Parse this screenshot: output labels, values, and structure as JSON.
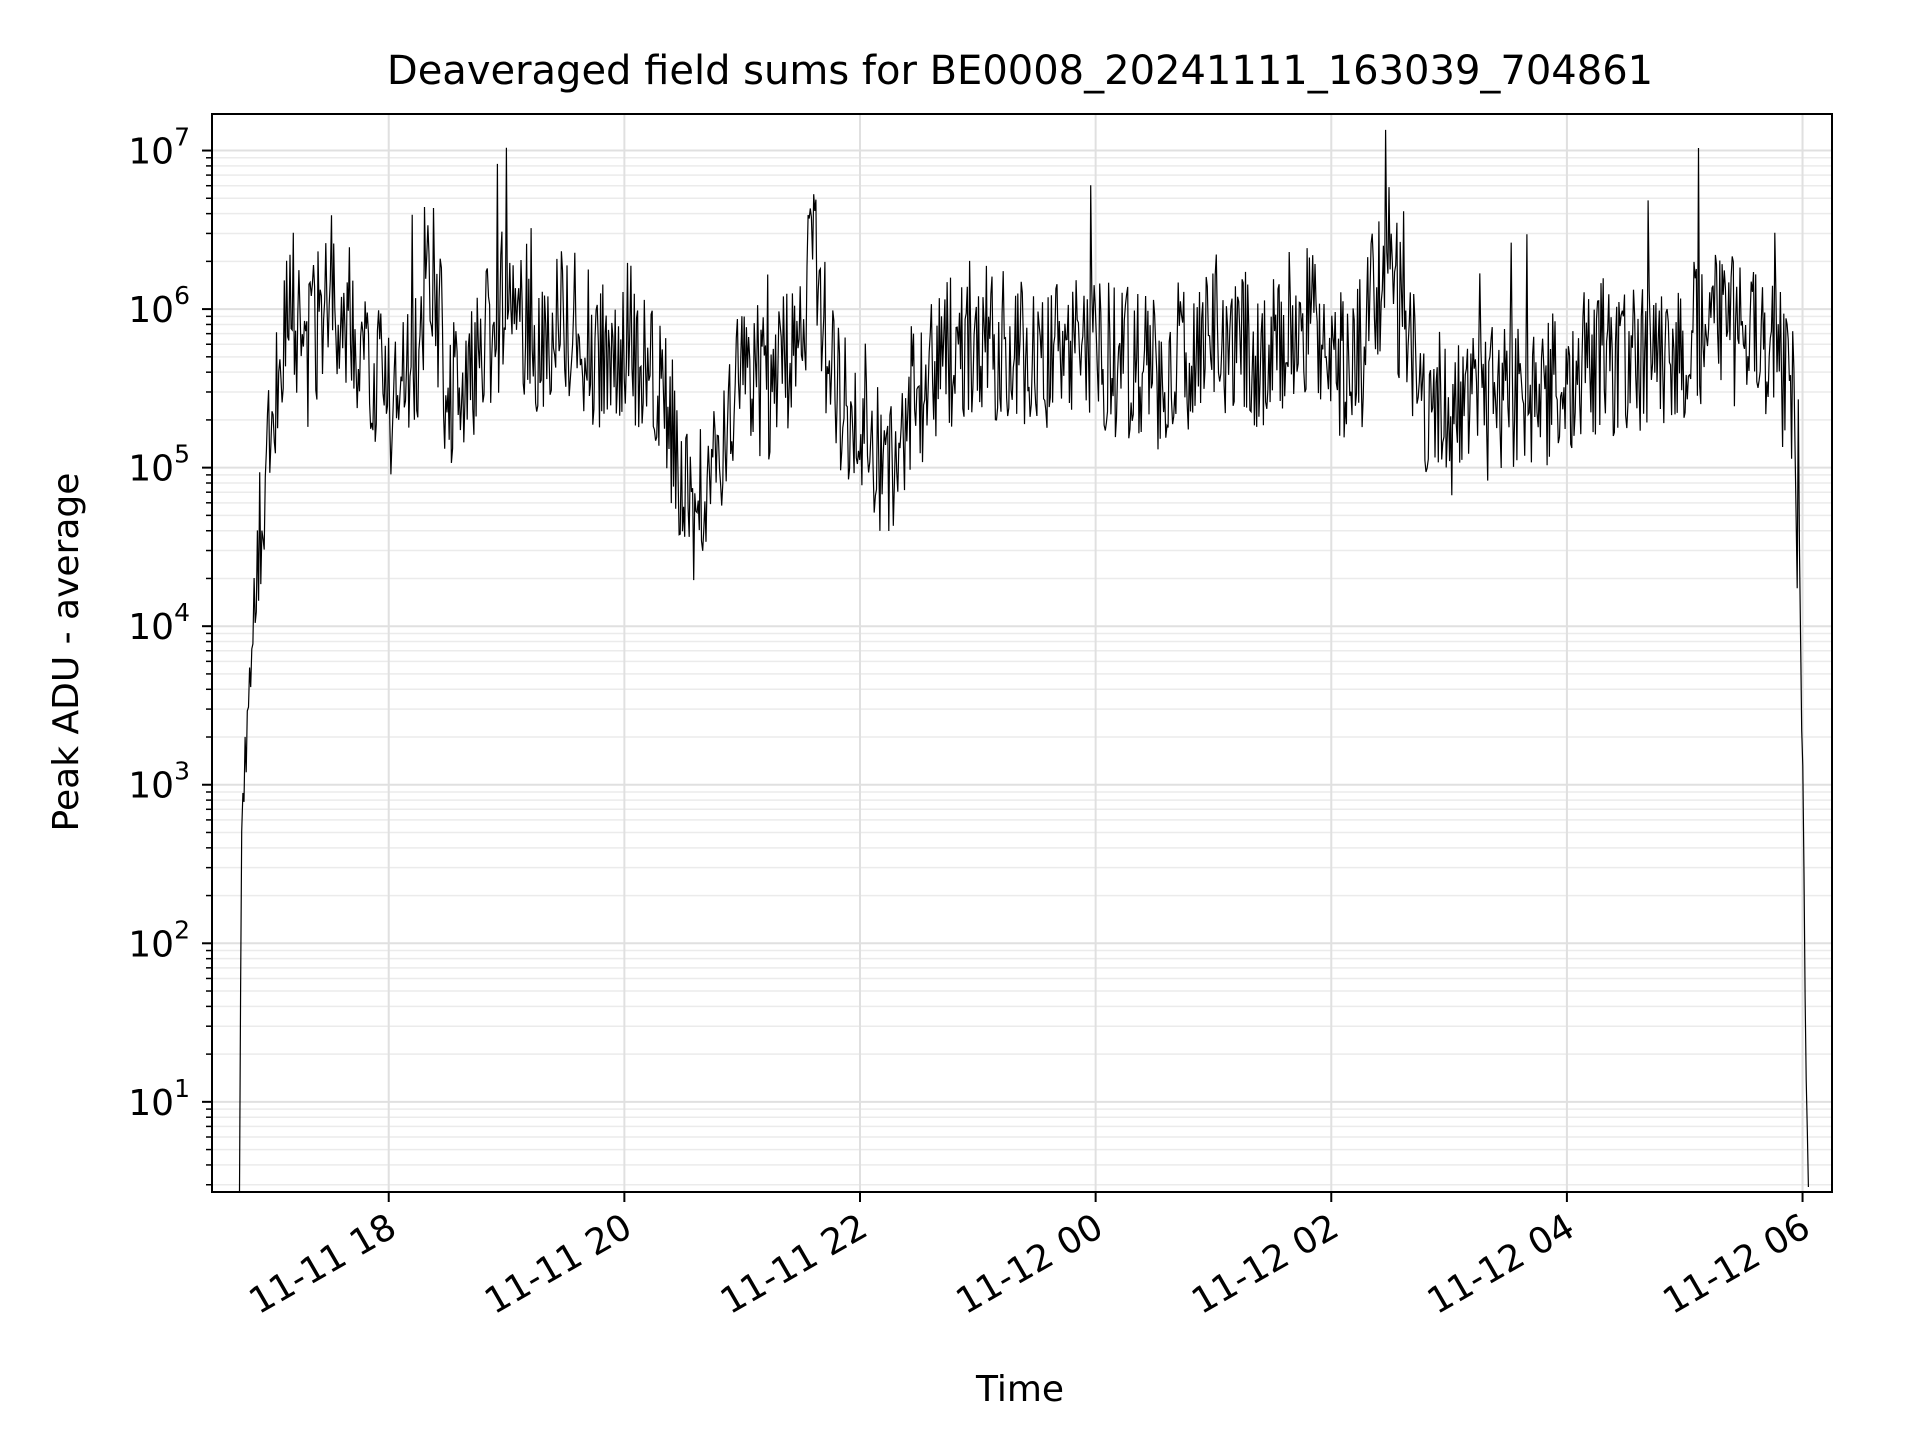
{
  "chart_data": {
    "type": "line",
    "title": "Deaveraged field sums for BE0008_20241111_163039_704861",
    "xlabel": "Time",
    "ylabel": "Peak ADU - average",
    "yscale": "log",
    "ylim": [
      2.7,
      17000000
    ],
    "xlim": [
      "2024-11-11 16:30",
      "2024-11-12 06:15"
    ],
    "x_ticks": [
      "2024-11-11 18:00",
      "2024-11-11 20:00",
      "2024-11-11 22:00",
      "2024-11-12 00:00",
      "2024-11-12 02:00",
      "2024-11-12 04:00",
      "2024-11-12 06:00"
    ],
    "x_tick_labels": [
      "11-11 18",
      "11-11 20",
      "11-11 22",
      "11-12 00",
      "11-12 02",
      "11-12 04",
      "11-12 06"
    ],
    "y_ticks": [
      10,
      100,
      1000,
      10000,
      100000,
      1000000,
      10000000
    ],
    "y_tick_labels": [
      {
        "base": "10",
        "exp": "1"
      },
      {
        "base": "10",
        "exp": "2"
      },
      {
        "base": "10",
        "exp": "3"
      },
      {
        "base": "10",
        "exp": "4"
      },
      {
        "base": "10",
        "exp": "5"
      },
      {
        "base": "10",
        "exp": "6"
      },
      {
        "base": "10",
        "exp": "7"
      }
    ],
    "grid": "major and minor",
    "line_color": "#000000",
    "series": [
      {
        "x": [
          "2024-11-11 16:44",
          "2024-11-11 16:45",
          "2024-11-11 16:48",
          "2024-11-11 16:52",
          "2024-11-11 16:55",
          "2024-11-11 17:00",
          "2024-11-11 17:05",
          "2024-11-11 17:10",
          "2024-11-11 17:15",
          "2024-11-11 17:20",
          "2024-11-11 17:30",
          "2024-11-11 17:45",
          "2024-11-11 18:00",
          "2024-11-11 18:15",
          "2024-11-11 18:20",
          "2024-11-11 18:30",
          "2024-11-11 18:45",
          "2024-11-11 19:00",
          "2024-11-11 19:15",
          "2024-11-11 19:30",
          "2024-11-11 19:45",
          "2024-11-11 20:00",
          "2024-11-11 20:15",
          "2024-11-11 20:25",
          "2024-11-11 20:30",
          "2024-11-11 20:45",
          "2024-11-11 20:55",
          "2024-11-11 21:00",
          "2024-11-11 21:15",
          "2024-11-11 21:30",
          "2024-11-11 21:36",
          "2024-11-11 21:45",
          "2024-11-11 22:00",
          "2024-11-11 22:15",
          "2024-11-11 22:30",
          "2024-11-11 22:45",
          "2024-11-11 23:00",
          "2024-11-11 23:30",
          "2024-11-12 00:00",
          "2024-11-12 00:30",
          "2024-11-12 01:00",
          "2024-11-12 01:30",
          "2024-11-12 01:45",
          "2024-11-12 02:00",
          "2024-11-12 02:15",
          "2024-11-12 02:30",
          "2024-11-12 02:32",
          "2024-11-12 02:45",
          "2024-11-12 03:00",
          "2024-11-12 03:30",
          "2024-11-12 04:00",
          "2024-11-12 04:15",
          "2024-11-12 04:30",
          "2024-11-12 05:00",
          "2024-11-12 05:15",
          "2024-11-12 05:30",
          "2024-11-12 05:45",
          "2024-11-12 05:55",
          "2024-11-12 05:58",
          "2024-11-12 06:00",
          "2024-11-12 06:01",
          "2024-11-12 06:02",
          "2024-11-12 06:03"
        ],
        "y": [
          3,
          500,
          3000,
          15000,
          60000,
          150000,
          600000,
          1200000,
          800000,
          500000,
          1500000,
          600000,
          250000,
          500000,
          2500000,
          300000,
          400000,
          1200000,
          700000,
          900000,
          500000,
          700000,
          400000,
          150000,
          50000,
          80000,
          300000,
          500000,
          300000,
          600000,
          3000000,
          400000,
          150000,
          100000,
          300000,
          500000,
          700000,
          500000,
          500000,
          400000,
          600000,
          500000,
          1000000,
          400000,
          500000,
          3000000,
          1500000,
          300000,
          200000,
          300000,
          300000,
          500000,
          500000,
          600000,
          700000,
          800000,
          500000,
          300000,
          30000,
          2000,
          100,
          10,
          3
        ]
      }
    ]
  }
}
